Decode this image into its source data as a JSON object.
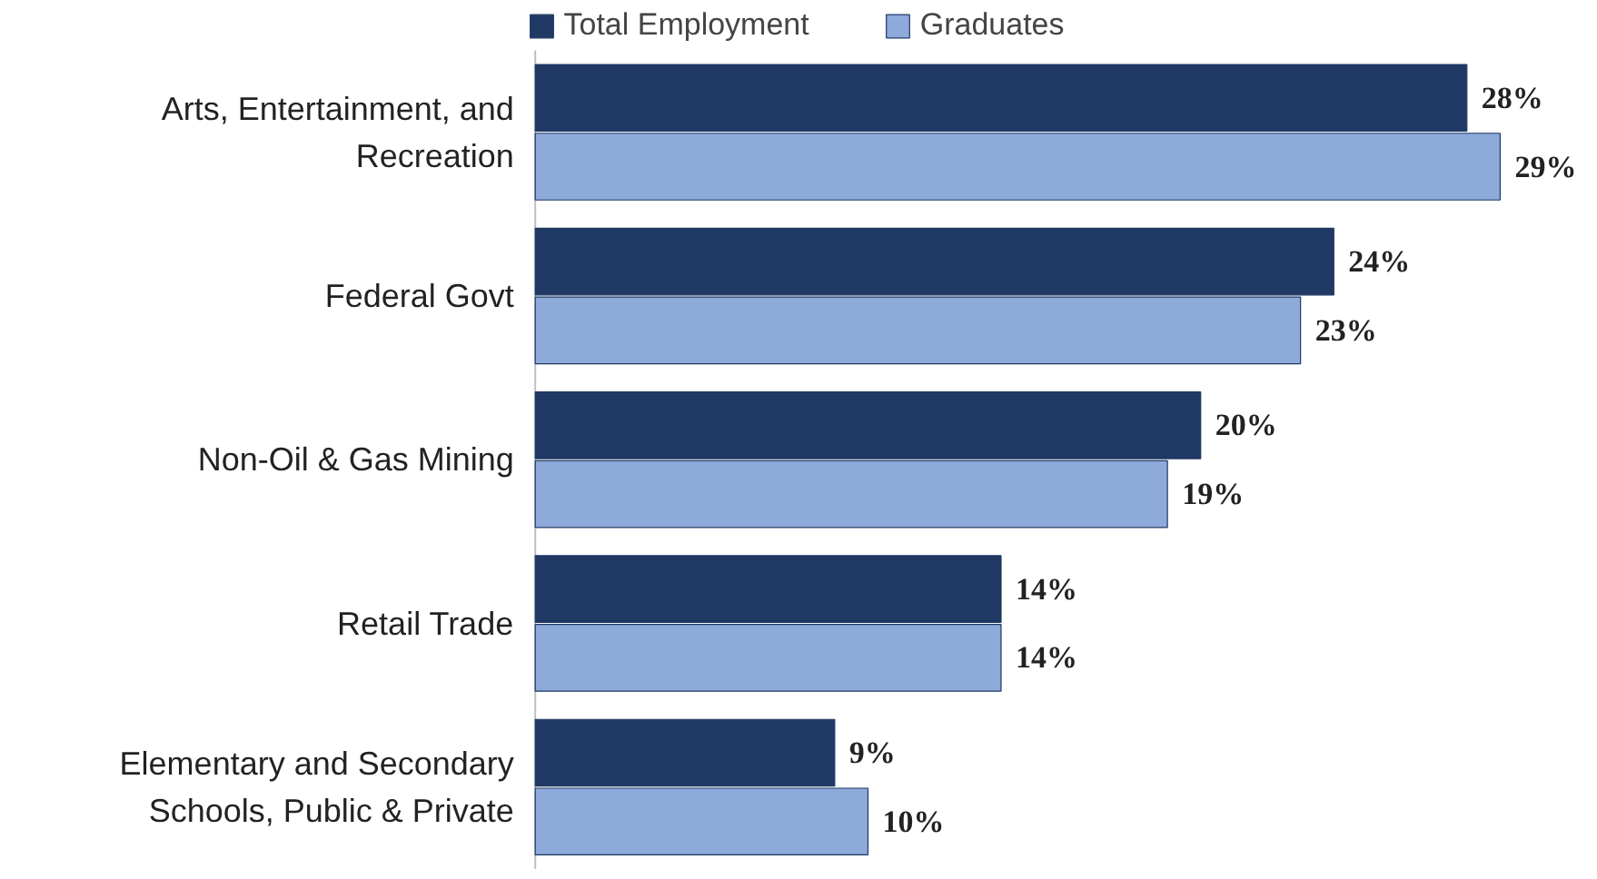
{
  "chart_data": {
    "type": "bar",
    "orientation": "horizontal",
    "categories": [
      "Arts, Entertainment, and Recreation",
      "Federal Govt",
      "Non-Oil & Gas Mining",
      "Retail Trade",
      "Elementary and Secondary Schools, Public & Private"
    ],
    "series": [
      {
        "name": "Total Employment",
        "color": "#1f3864",
        "values": [
          28,
          24,
          20,
          14,
          9
        ],
        "value_labels": [
          "28%",
          "24%",
          "20%",
          "14%",
          "9%"
        ]
      },
      {
        "name": "Graduates",
        "color": "#8eaadb",
        "values": [
          29,
          23,
          19,
          14,
          10
        ],
        "value_labels": [
          "29%",
          "23%",
          "19%",
          "14%",
          "10%"
        ]
      }
    ],
    "legend": "top"
  }
}
